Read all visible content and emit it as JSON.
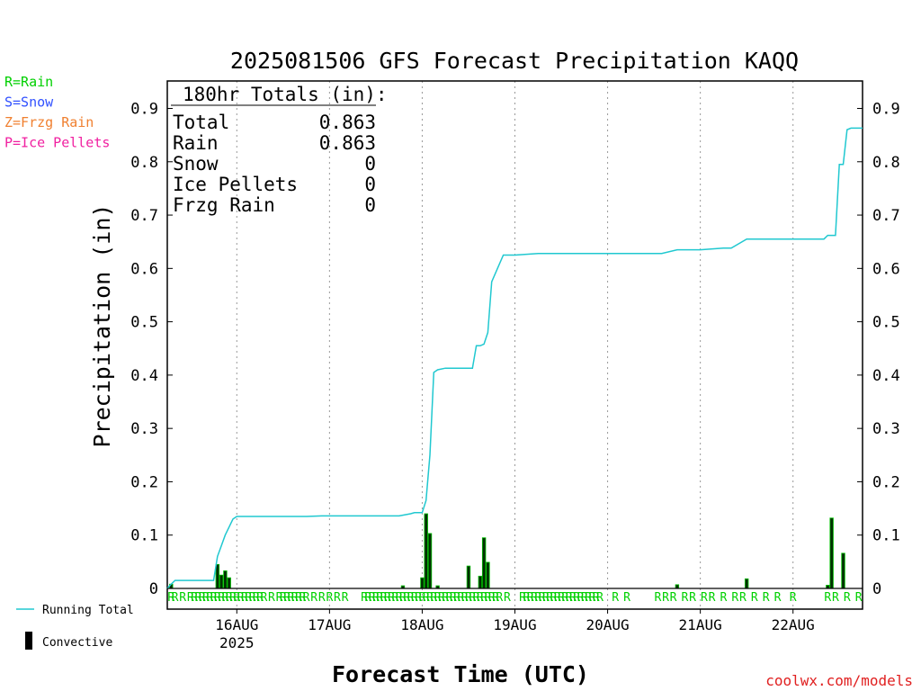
{
  "chart_data": {
    "type": "line",
    "title": "2025081506 GFS Forecast Precipitation KAQQ",
    "xlabel": "Forecast Time (UTC)",
    "ylabel": "Precipitation (in)",
    "ylim": [
      0,
      0.95
    ],
    "yticks": [
      0,
      0.1,
      0.2,
      0.3,
      0.4,
      0.5,
      0.6,
      0.7,
      0.8,
      0.9
    ],
    "ytick_labels": [
      "0",
      "0.1",
      "0.2",
      "0.3",
      "0.4",
      "0.5",
      "0.6",
      "0.7",
      "0.8",
      "0.9"
    ],
    "xlim_hours": [
      0,
      180
    ],
    "x_ticks": [
      {
        "hour": 18,
        "label": "16AUG",
        "sublabel": "2025"
      },
      {
        "hour": 42,
        "label": "17AUG",
        "sublabel": ""
      },
      {
        "hour": 66,
        "label": "18AUG",
        "sublabel": ""
      },
      {
        "hour": 90,
        "label": "19AUG",
        "sublabel": ""
      },
      {
        "hour": 114,
        "label": "20AUG",
        "sublabel": ""
      },
      {
        "hour": 138,
        "label": "21AUG",
        "sublabel": ""
      },
      {
        "hour": 162,
        "label": "22AUG",
        "sublabel": ""
      }
    ],
    "grid": "vertical dotted",
    "legend": {
      "precip_types": [
        {
          "label": "R=Rain",
          "color": "#00d000"
        },
        {
          "label": "S=Snow",
          "color": "#3050ff"
        },
        {
          "label": "Z=Frzg Rain",
          "color": "#f08030"
        },
        {
          "label": "P=Ice Pellets",
          "color": "#f020a0"
        }
      ],
      "series": [
        {
          "label": "Running Total",
          "color": "#20c8d0"
        },
        {
          "label": "Convective",
          "color": "#000000"
        }
      ]
    },
    "totals_box": {
      "heading": "180hr Totals (in):",
      "rows": [
        {
          "label": "Total",
          "value": "0.863"
        },
        {
          "label": "Rain",
          "value": "0.863"
        },
        {
          "label": "Snow",
          "value": "0"
        },
        {
          "label": "Ice Pellets",
          "value": "0"
        },
        {
          "label": "Frzg Rain",
          "value": "0"
        }
      ]
    },
    "running_total": {
      "name": "Running Total",
      "color": "#20c8d0",
      "x": [
        0,
        1,
        2,
        3,
        6,
        9,
        12,
        13,
        14,
        15,
        16,
        17,
        18,
        19,
        24,
        30,
        36,
        40,
        48,
        54,
        60,
        63,
        64,
        65,
        66,
        67,
        68,
        69,
        70,
        72,
        75,
        78,
        79,
        80,
        81,
        82,
        83,
        84,
        87,
        90,
        96,
        102,
        108,
        114,
        120,
        126,
        128,
        132,
        136,
        138,
        144,
        146,
        150,
        156,
        162,
        168,
        170,
        171,
        172,
        173,
        174,
        175,
        176,
        177,
        178,
        180
      ],
      "y": [
        0,
        0.008,
        0.015,
        0.015,
        0.015,
        0.015,
        0.015,
        0.06,
        0.08,
        0.1,
        0.115,
        0.13,
        0.135,
        0.135,
        0.135,
        0.135,
        0.135,
        0.136,
        0.136,
        0.136,
        0.136,
        0.14,
        0.142,
        0.142,
        0.142,
        0.165,
        0.25,
        0.405,
        0.41,
        0.413,
        0.413,
        0.413,
        0.413,
        0.455,
        0.455,
        0.458,
        0.48,
        0.575,
        0.625,
        0.625,
        0.628,
        0.628,
        0.628,
        0.628,
        0.628,
        0.628,
        0.628,
        0.635,
        0.635,
        0.635,
        0.638,
        0.638,
        0.655,
        0.655,
        0.655,
        0.655,
        0.655,
        0.662,
        0.662,
        0.662,
        0.795,
        0.795,
        0.86,
        0.863,
        0.863,
        0.863
      ]
    },
    "convective": {
      "name": "Convective",
      "color": "#000000",
      "x": [
        1,
        13,
        14,
        15,
        16,
        61,
        66,
        67,
        68,
        70,
        78,
        81,
        82,
        83,
        132,
        150,
        171,
        172,
        175
      ],
      "y": [
        0.008,
        0.045,
        0.025,
        0.033,
        0.02,
        0.005,
        0.02,
        0.14,
        0.103,
        0.005,
        0.042,
        0.023,
        0.095,
        0.049,
        0.007,
        0.018,
        0.006,
        0.132,
        0.066
      ]
    },
    "precip_type_markers": {
      "symbol": "R",
      "color": "#00d000",
      "hours": [
        1,
        2,
        4,
        6,
        7,
        8,
        9,
        10,
        11,
        12,
        13,
        14,
        15,
        16,
        17,
        18,
        19,
        20,
        21,
        22,
        23,
        24,
        25,
        27,
        29,
        30,
        31,
        32,
        33,
        34,
        35,
        36,
        38,
        40,
        42,
        44,
        46,
        51,
        52,
        53,
        54,
        55,
        56,
        57,
        58,
        59,
        60,
        61,
        62,
        63,
        64,
        65,
        66,
        67,
        68,
        69,
        70,
        71,
        72,
        73,
        74,
        75,
        76,
        77,
        78,
        79,
        80,
        81,
        82,
        83,
        84,
        85,
        86,
        88,
        92,
        93,
        94,
        95,
        96,
        97,
        98,
        99,
        100,
        101,
        102,
        103,
        104,
        105,
        106,
        107,
        108,
        109,
        110,
        111,
        112,
        116,
        119,
        127,
        129,
        131,
        134,
        136,
        139,
        141,
        144,
        147,
        149,
        152,
        155,
        158,
        162,
        171,
        173,
        176,
        179
      ]
    }
  },
  "watermark": "coolwx.com/models"
}
